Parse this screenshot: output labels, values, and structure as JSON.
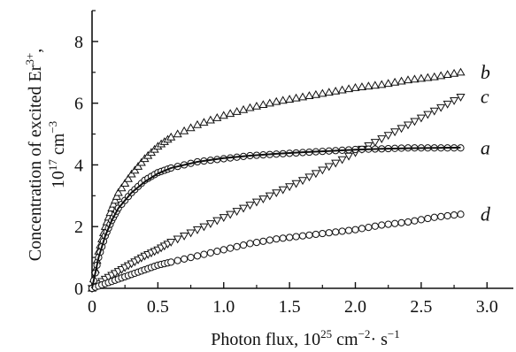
{
  "chart_data": {
    "type": "scatter",
    "xlabel": {
      "main": "Photon flux, 10",
      "sup1": "25",
      "mid": " cm",
      "sup2": "−2",
      "end": "· s",
      "sup3": "−1"
    },
    "ylabel": {
      "line1": "Concentration of excited Er",
      "line1_sup": "3+",
      "line1_end": ",",
      "line2": "10",
      "line2_sup": "17",
      "line2_mid": " cm",
      "line2_sup2": "−3"
    },
    "xlim": [
      0,
      3.2
    ],
    "ylim": [
      0,
      9
    ],
    "xticks": [
      "0",
      "0.5",
      "1.0",
      "1.5",
      "2.0",
      "2.5",
      "3.0"
    ],
    "xtick_values": [
      0,
      0.5,
      1.0,
      1.5,
      2.0,
      2.5,
      3.0
    ],
    "yticks": [
      "0",
      "2",
      "4",
      "6",
      "8"
    ],
    "ytick_values": [
      0,
      2,
      4,
      6,
      8
    ],
    "grid": false,
    "series": [
      {
        "name": "b",
        "marker": "triangle-up",
        "x": [
          0.0,
          0.05,
          0.1,
          0.15,
          0.2,
          0.3,
          0.4,
          0.5,
          0.6,
          0.8,
          1.0,
          1.2,
          1.4,
          1.6,
          1.8,
          2.0,
          2.2,
          2.4,
          2.6,
          2.8
        ],
        "y": [
          0.0,
          1.2,
          2.0,
          2.6,
          3.1,
          3.7,
          4.2,
          4.6,
          4.9,
          5.3,
          5.6,
          5.85,
          6.05,
          6.2,
          6.35,
          6.5,
          6.6,
          6.75,
          6.85,
          7.0
        ]
      },
      {
        "name": "c",
        "marker": "triangle-down",
        "x": [
          0.0,
          0.1,
          0.2,
          0.3,
          0.4,
          0.5,
          0.6,
          0.8,
          1.0,
          1.2,
          1.4,
          1.6,
          1.8,
          2.0,
          2.2,
          2.4,
          2.6,
          2.8
        ],
        "y": [
          0.0,
          0.3,
          0.55,
          0.8,
          1.05,
          1.25,
          1.5,
          1.9,
          2.3,
          2.7,
          3.1,
          3.5,
          3.95,
          4.4,
          4.85,
          5.3,
          5.75,
          6.2
        ]
      },
      {
        "name": "a",
        "marker": "circle",
        "x": [
          0.0,
          0.05,
          0.1,
          0.15,
          0.2,
          0.3,
          0.4,
          0.5,
          0.6,
          0.8,
          1.0,
          1.2,
          1.4,
          1.6,
          1.8,
          2.0,
          2.2,
          2.4,
          2.6,
          2.8
        ],
        "y": [
          0.0,
          1.0,
          1.7,
          2.2,
          2.6,
          3.1,
          3.5,
          3.75,
          3.9,
          4.1,
          4.2,
          4.3,
          4.35,
          4.4,
          4.45,
          4.5,
          4.52,
          4.55,
          4.55,
          4.55
        ]
      },
      {
        "name": "d",
        "marker": "circle",
        "x": [
          0.0,
          0.1,
          0.2,
          0.3,
          0.4,
          0.5,
          0.6,
          0.8,
          1.0,
          1.2,
          1.4,
          1.6,
          1.8,
          2.0,
          2.2,
          2.4,
          2.6,
          2.8
        ],
        "y": [
          0.0,
          0.15,
          0.3,
          0.45,
          0.6,
          0.75,
          0.85,
          1.05,
          1.25,
          1.45,
          1.6,
          1.7,
          1.8,
          1.9,
          2.05,
          2.15,
          2.3,
          2.4
        ]
      }
    ],
    "fit_curve": {
      "series": "a",
      "x": [
        0.0,
        0.05,
        0.1,
        0.15,
        0.2,
        0.3,
        0.4,
        0.5,
        0.6,
        0.8,
        1.0,
        1.2,
        1.4,
        1.6,
        1.8,
        2.0,
        2.2,
        2.4,
        2.6,
        2.8
      ],
      "y": [
        0.0,
        1.0,
        1.7,
        2.2,
        2.6,
        3.1,
        3.45,
        3.72,
        3.9,
        4.1,
        4.22,
        4.3,
        4.36,
        4.41,
        4.45,
        4.49,
        4.52,
        4.54,
        4.55,
        4.56
      ]
    }
  }
}
